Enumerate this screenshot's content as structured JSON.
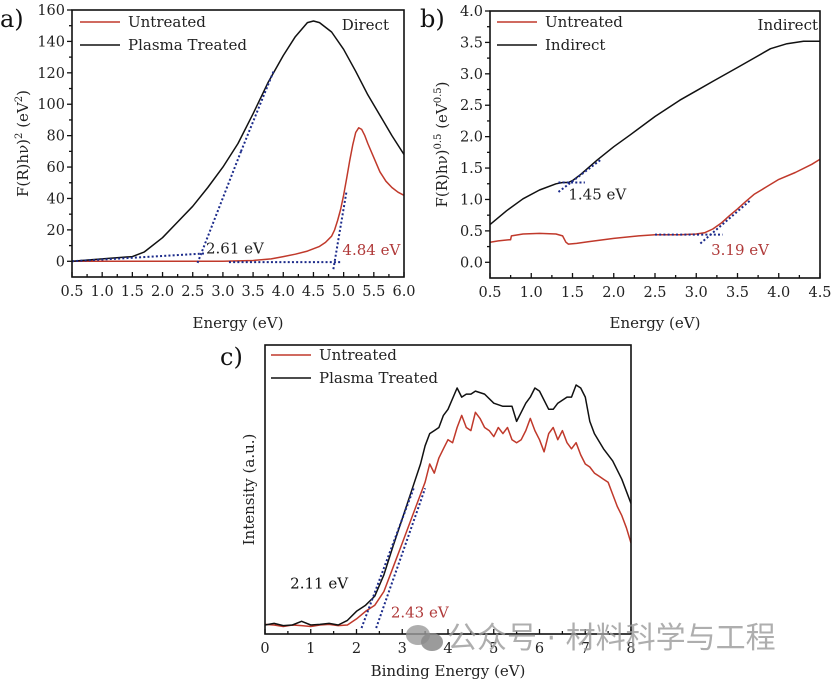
{
  "chart_data": [
    {
      "id": "a",
      "panel_label": "a)",
      "type": "line",
      "title": "",
      "corner_label": "Direct",
      "xlabel": "Energy (eV)",
      "ylabel": "F(R)hν)² (eV²)",
      "ylabel_parts": {
        "main": "F(R)hν)",
        "sup1": "2",
        "unit": " (eV",
        "sup2": "2",
        "close": ")"
      },
      "xlim": [
        0.5,
        6.0
      ],
      "ylim": [
        -10,
        160
      ],
      "xticks": [
        "0.5",
        "1.0",
        "1.5",
        "2.0",
        "2.5",
        "3.0",
        "3.5",
        "4.0",
        "4.5",
        "5.0",
        "5.5",
        "6.0"
      ],
      "xtick_values": [
        0.5,
        1.0,
        1.5,
        2.0,
        2.5,
        3.0,
        3.5,
        4.0,
        4.5,
        5.0,
        5.5,
        6.0
      ],
      "yticks": [
        "0",
        "20",
        "40",
        "60",
        "80",
        "100",
        "120",
        "140",
        "160"
      ],
      "ytick_values": [
        0,
        20,
        40,
        60,
        80,
        100,
        120,
        140,
        160
      ],
      "legend": {
        "position": "top-left",
        "entries": [
          {
            "label": "Untreated",
            "color": "#c0392b"
          },
          {
            "label": "Plasma Treated",
            "color": "#111111"
          }
        ]
      },
      "series": [
        {
          "name": "Untreated",
          "color": "#c0392b",
          "x": [
            0.5,
            1.0,
            1.5,
            2.0,
            2.5,
            3.0,
            3.5,
            3.8,
            4.0,
            4.2,
            4.4,
            4.6,
            4.7,
            4.8,
            4.85,
            4.9,
            4.95,
            5.0,
            5.05,
            5.1,
            5.15,
            5.2,
            5.25,
            5.3,
            5.35,
            5.4,
            5.5,
            5.6,
            5.7,
            5.8,
            5.9,
            6.0
          ],
          "y": [
            0,
            0,
            0,
            0,
            0,
            0,
            0.5,
            1.5,
            3,
            4.5,
            6.5,
            9.5,
            12,
            16,
            20,
            26,
            33,
            42,
            53,
            64,
            74,
            82,
            85,
            84,
            80,
            75,
            66,
            57,
            51,
            47,
            44,
            42
          ]
        },
        {
          "name": "Plasma Treated",
          "color": "#111111",
          "x": [
            0.5,
            1.0,
            1.5,
            1.7,
            2.0,
            2.25,
            2.5,
            2.75,
            3.0,
            3.25,
            3.5,
            3.75,
            4.0,
            4.2,
            4.4,
            4.5,
            4.6,
            4.8,
            5.0,
            5.2,
            5.4,
            5.6,
            5.8,
            6.0
          ],
          "y": [
            0,
            1.5,
            3,
            6,
            15,
            25,
            35,
            47,
            60,
            75,
            94,
            114,
            131,
            143,
            152,
            153,
            152,
            146,
            135,
            121,
            106,
            93,
            80,
            68
          ]
        }
      ],
      "fit_lines": [
        {
          "color": "#1b2a8a",
          "x": [
            0.5,
            2.7
          ],
          "y": [
            0,
            5
          ]
        },
        {
          "color": "#1b2a8a",
          "x": [
            2.58,
            3.3
          ],
          "y": [
            -1,
            70
          ]
        },
        {
          "color": "#1b2a8a",
          "x": [
            3.3,
            3.85
          ],
          "y": [
            70,
            122
          ]
        },
        {
          "color": "#1b2a8a",
          "x": [
            3.1,
            4.95
          ],
          "y": [
            -0.5,
            -0.5
          ]
        },
        {
          "color": "#1b2a8a",
          "x": [
            4.83,
            5.05
          ],
          "y": [
            -5,
            45
          ]
        }
      ],
      "annotations": [
        {
          "text": "2.61 eV",
          "x": 2.72,
          "y": 5,
          "color": "#222222"
        },
        {
          "text": "4.84 eV",
          "x": 4.98,
          "y": 4,
          "color": "#b03a3a"
        }
      ]
    },
    {
      "id": "b",
      "panel_label": "b)",
      "type": "line",
      "title": "",
      "corner_label": "Indirect",
      "xlabel": "Energy (eV)",
      "ylabel": "F(R)hν)^0.5 (eV^0.5)",
      "ylabel_parts": {
        "main": "F(R)hν)",
        "sup1": "0.5",
        "unit": " (eV",
        "sup2": "0.5",
        "close": ")"
      },
      "xlim": [
        0.5,
        4.5
      ],
      "ylim": [
        -0.25,
        4.0
      ],
      "xticks": [
        "0.5",
        "1.0",
        "1.5",
        "2.0",
        "2.5",
        "3.0",
        "3.5",
        "4.0",
        "4.5"
      ],
      "xtick_values": [
        0.5,
        1.0,
        1.5,
        2.0,
        2.5,
        3.0,
        3.5,
        4.0,
        4.5
      ],
      "yticks": [
        "0.0",
        "0.5",
        "1.0",
        "1.5",
        "2.0",
        "2.5",
        "3.0",
        "3.5",
        "4.0"
      ],
      "ytick_values": [
        0.0,
        0.5,
        1.0,
        1.5,
        2.0,
        2.5,
        3.0,
        3.5,
        4.0
      ],
      "legend": {
        "position": "top-left",
        "entries": [
          {
            "label": "Untreated",
            "color": "#c0392b"
          },
          {
            "label": "Indirect",
            "color": "#111111"
          }
        ]
      },
      "series": [
        {
          "name": "Untreated",
          "color": "#c0392b",
          "x": [
            0.5,
            0.6,
            0.74,
            0.75,
            0.76,
            0.9,
            1.1,
            1.3,
            1.38,
            1.42,
            1.45,
            1.55,
            1.7,
            2.0,
            2.3,
            2.5,
            2.8,
            3.0,
            3.1,
            3.2,
            3.3,
            3.4,
            3.5,
            3.6,
            3.7,
            3.85,
            4.0,
            4.2,
            4.4,
            4.5
          ],
          "y": [
            0.32,
            0.34,
            0.36,
            0.36,
            0.42,
            0.45,
            0.46,
            0.45,
            0.42,
            0.32,
            0.29,
            0.3,
            0.33,
            0.38,
            0.42,
            0.44,
            0.44,
            0.45,
            0.47,
            0.53,
            0.62,
            0.74,
            0.85,
            0.97,
            1.08,
            1.2,
            1.32,
            1.43,
            1.56,
            1.64
          ]
        },
        {
          "name": "Indirect",
          "color": "#111111",
          "x": [
            0.5,
            0.7,
            0.9,
            1.1,
            1.3,
            1.38,
            1.45,
            1.5,
            1.6,
            1.8,
            2.0,
            2.2,
            2.5,
            2.8,
            3.0,
            3.2,
            3.5,
            3.7,
            3.9,
            4.1,
            4.3,
            4.5
          ],
          "y": [
            0.6,
            0.82,
            1.01,
            1.15,
            1.25,
            1.27,
            1.27,
            1.3,
            1.4,
            1.63,
            1.84,
            2.03,
            2.32,
            2.58,
            2.73,
            2.88,
            3.1,
            3.25,
            3.4,
            3.48,
            3.52,
            3.52
          ]
        }
      ],
      "fit_lines": [
        {
          "color": "#1b2a8a",
          "x": [
            1.33,
            1.65
          ],
          "y": [
            1.27,
            1.27
          ]
        },
        {
          "color": "#1b2a8a",
          "x": [
            1.33,
            1.85
          ],
          "y": [
            1.12,
            1.64
          ]
        },
        {
          "color": "#1b2a8a",
          "x": [
            2.5,
            3.32
          ],
          "y": [
            0.44,
            0.44
          ]
        },
        {
          "color": "#1b2a8a",
          "x": [
            3.05,
            3.65
          ],
          "y": [
            0.3,
            0.98
          ]
        }
      ],
      "annotations": [
        {
          "text": "1.45 eV",
          "x": 1.45,
          "y": 1.0,
          "color": "#222222"
        },
        {
          "text": "3.19 eV",
          "x": 3.18,
          "y": 0.12,
          "color": "#b03a3a"
        }
      ]
    },
    {
      "id": "c",
      "panel_label": "c)",
      "type": "line",
      "title": "",
      "xlabel": "Binding Energy (eV)",
      "ylabel": "Intensity (a.u.)",
      "xlim": [
        0,
        8
      ],
      "ylim": [
        0,
        1.0
      ],
      "xticks": [
        "0",
        "1",
        "2",
        "3",
        "4",
        "5",
        "6",
        "7",
        "8"
      ],
      "xtick_values": [
        0,
        1,
        2,
        3,
        4,
        5,
        6,
        7,
        8
      ],
      "yticks": [],
      "ytick_values": [],
      "legend": {
        "position": "top-left",
        "entries": [
          {
            "label": "Untreated",
            "color": "#c0392b"
          },
          {
            "label": "Plasma Treated",
            "color": "#111111"
          }
        ]
      },
      "series": [
        {
          "name": "Untreated",
          "color": "#c0392b",
          "x": [
            0,
            0.2,
            0.4,
            0.6,
            0.8,
            1.0,
            1.2,
            1.4,
            1.6,
            1.8,
            2.0,
            2.2,
            2.4,
            2.6,
            2.8,
            3.0,
            3.2,
            3.4,
            3.5,
            3.6,
            3.7,
            3.8,
            3.9,
            4.0,
            4.1,
            4.2,
            4.3,
            4.4,
            4.5,
            4.6,
            4.7,
            4.8,
            4.9,
            5.0,
            5.1,
            5.2,
            5.3,
            5.4,
            5.5,
            5.6,
            5.7,
            5.8,
            5.9,
            6.0,
            6.1,
            6.2,
            6.3,
            6.4,
            6.5,
            6.6,
            6.7,
            6.8,
            6.9,
            7.0,
            7.1,
            7.2,
            7.3,
            7.4,
            7.5,
            7.6,
            7.7,
            7.8,
            7.9,
            8.0
          ],
          "y": [
            0.012,
            0.01,
            0.005,
            0.01,
            0.008,
            0.005,
            0.01,
            0.012,
            0.008,
            0.01,
            0.03,
            0.055,
            0.075,
            0.12,
            0.2,
            0.28,
            0.36,
            0.44,
            0.48,
            0.54,
            0.51,
            0.56,
            0.59,
            0.62,
            0.61,
            0.66,
            0.7,
            0.66,
            0.65,
            0.71,
            0.69,
            0.66,
            0.65,
            0.63,
            0.66,
            0.64,
            0.66,
            0.62,
            0.61,
            0.62,
            0.65,
            0.69,
            0.65,
            0.62,
            0.58,
            0.64,
            0.66,
            0.62,
            0.65,
            0.61,
            0.59,
            0.61,
            0.57,
            0.54,
            0.53,
            0.51,
            0.5,
            0.49,
            0.48,
            0.44,
            0.4,
            0.37,
            0.33,
            0.28
          ]
        },
        {
          "name": "Plasma Treated",
          "color": "#111111",
          "x": [
            0,
            0.2,
            0.4,
            0.6,
            0.8,
            1.0,
            1.2,
            1.4,
            1.6,
            1.8,
            2.0,
            2.2,
            2.4,
            2.6,
            2.8,
            3.0,
            3.2,
            3.4,
            3.5,
            3.6,
            3.7,
            3.8,
            3.9,
            4.0,
            4.2,
            4.3,
            4.4,
            4.5,
            4.6,
            4.8,
            5.0,
            5.2,
            5.4,
            5.5,
            5.6,
            5.7,
            5.8,
            5.9,
            6.0,
            6.2,
            6.3,
            6.4,
            6.6,
            6.7,
            6.8,
            6.9,
            7.0,
            7.1,
            7.2,
            7.4,
            7.6,
            7.8,
            8.0
          ],
          "y": [
            0.01,
            0.015,
            0.008,
            0.01,
            0.022,
            0.01,
            0.012,
            0.015,
            0.01,
            0.025,
            0.055,
            0.075,
            0.105,
            0.175,
            0.27,
            0.36,
            0.45,
            0.54,
            0.6,
            0.64,
            0.65,
            0.66,
            0.7,
            0.72,
            0.79,
            0.76,
            0.77,
            0.77,
            0.78,
            0.77,
            0.74,
            0.73,
            0.73,
            0.68,
            0.71,
            0.74,
            0.76,
            0.79,
            0.78,
            0.72,
            0.72,
            0.74,
            0.76,
            0.76,
            0.8,
            0.79,
            0.76,
            0.68,
            0.64,
            0.59,
            0.55,
            0.49,
            0.41
          ]
        }
      ],
      "fit_lines": [
        {
          "color": "#1b2a8a",
          "x": [
            2.11,
            3.25
          ],
          "y": [
            0.0,
            0.46
          ]
        },
        {
          "color": "#1b2a8a",
          "x": [
            2.43,
            3.5
          ],
          "y": [
            0.0,
            0.46
          ]
        }
      ],
      "annotations": [
        {
          "text": "2.11 eV",
          "x": 0.55,
          "y": 0.13,
          "color": "#111111"
        },
        {
          "text": "2.43 eV",
          "x": 2.75,
          "y": 0.035,
          "color": "#b03a3a"
        }
      ]
    }
  ],
  "watermark": {
    "text": "公众号 · 材料科学与工程",
    "icon": "wechat-icon"
  }
}
